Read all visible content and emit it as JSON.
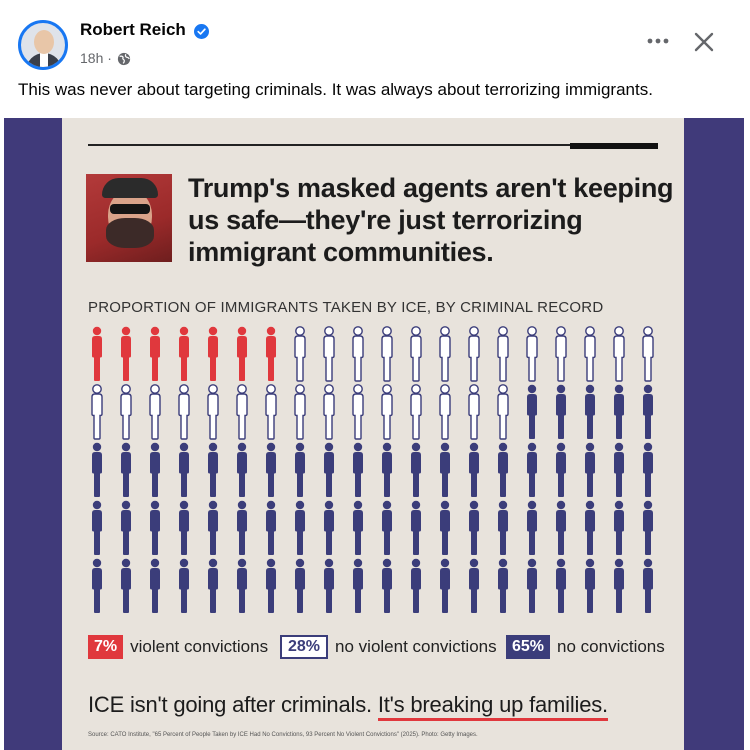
{
  "post": {
    "author": "Robert Reich",
    "time": "18h ·",
    "text": "This was never about targeting criminals. It was always about terrorizing immigrants."
  },
  "icons": {
    "verified": "verified-badge-icon",
    "audience": "globe-icon",
    "more": "more-options-icon",
    "close": "close-icon"
  },
  "image": {
    "headline": "Trump's masked agents aren't keeping us safe—they're just terrorizing immigrant communities.",
    "bottom_line_prefix": "ICE isn't going after criminals.",
    "bottom_line_emphasis": "It's breaking up families.",
    "source": "Source: CATO Institute, \"65 Percent of People Taken by ICE Had No Convictions, 93 Percent No Violent Convictions\" (2025). Photo: Getty Images."
  },
  "chart_data": {
    "type": "pictogram",
    "title": "PROPORTION OF IMMIGRANTS TAKEN BY ICE, BY CRIMINAL RECORD",
    "total_icons": 100,
    "columns": 20,
    "rows": 5,
    "categories": [
      {
        "label": "violent convictions",
        "value": 7,
        "display": "7%",
        "color": "#e0383d",
        "style": "filled"
      },
      {
        "label": "no violent convictions",
        "value": 28,
        "display": "28%",
        "color": "#3b3d7a",
        "style": "outline"
      },
      {
        "label": "no convictions",
        "value": 65,
        "display": "65%",
        "color": "#3b3d7a",
        "style": "filled"
      }
    ]
  },
  "colors": {
    "accent_red": "#e0383d",
    "navy": "#3b3d7a",
    "poster_bg": "#e8e3dc",
    "frame_bg": "#403a7a",
    "facebook_blue": "#1877f2"
  }
}
